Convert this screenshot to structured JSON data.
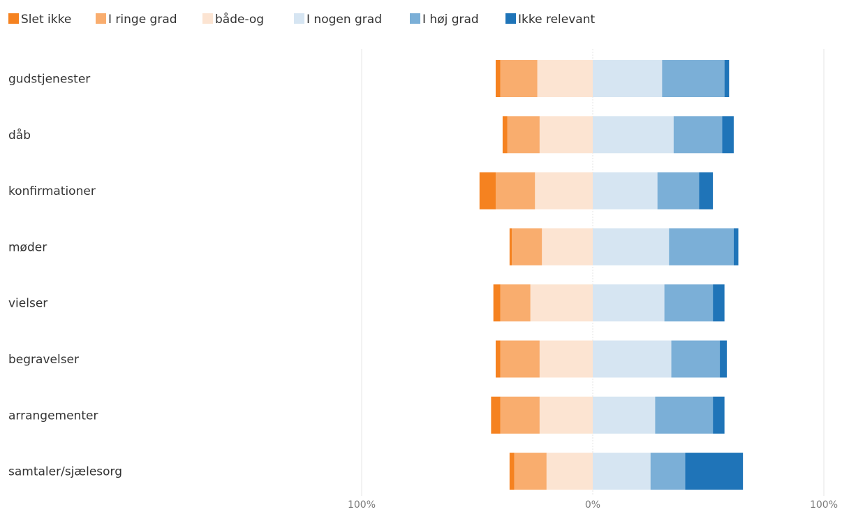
{
  "chart_data": {
    "type": "bar",
    "orientation": "horizontal",
    "stacking": "diverging",
    "title": "",
    "xlabel": "",
    "ylabel": "",
    "xlim": [
      -100,
      100
    ],
    "x_ticks": [
      {
        "value": -100,
        "label": "100%"
      },
      {
        "value": 0,
        "label": "0%"
      },
      {
        "value": 100,
        "label": "100%"
      }
    ],
    "grid": true,
    "legend_position": "top-left",
    "categories": [
      "gudstjenester",
      "dåb",
      "konfirmationer",
      "møder",
      "vielser",
      "begravelser",
      "arrangementer",
      "samtaler/sjælesorg"
    ],
    "series": [
      {
        "name": "Slet ikke",
        "color": "#F58220",
        "side": "negative",
        "values": [
          2,
          2,
          7,
          1,
          3,
          2,
          4,
          2
        ]
      },
      {
        "name": "I ringe grad",
        "color": "#F9AD6E",
        "side": "negative",
        "values": [
          16,
          14,
          17,
          13,
          13,
          17,
          17,
          14
        ]
      },
      {
        "name": "både-og",
        "color": "#FCE4D2",
        "side": "negative",
        "values": [
          24,
          23,
          25,
          22,
          27,
          23,
          23,
          20
        ]
      },
      {
        "name": "I nogen grad",
        "color": "#D6E5F2",
        "side": "positive",
        "values": [
          30,
          35,
          28,
          33,
          31,
          34,
          27,
          25
        ]
      },
      {
        "name": "I høj grad",
        "color": "#7BAFD7",
        "side": "positive",
        "values": [
          27,
          21,
          18,
          28,
          21,
          21,
          25,
          15
        ]
      },
      {
        "name": "Ikke relevant",
        "color": "#1F74B8",
        "side": "positive",
        "values": [
          2,
          5,
          6,
          2,
          5,
          3,
          5,
          25
        ]
      }
    ]
  }
}
